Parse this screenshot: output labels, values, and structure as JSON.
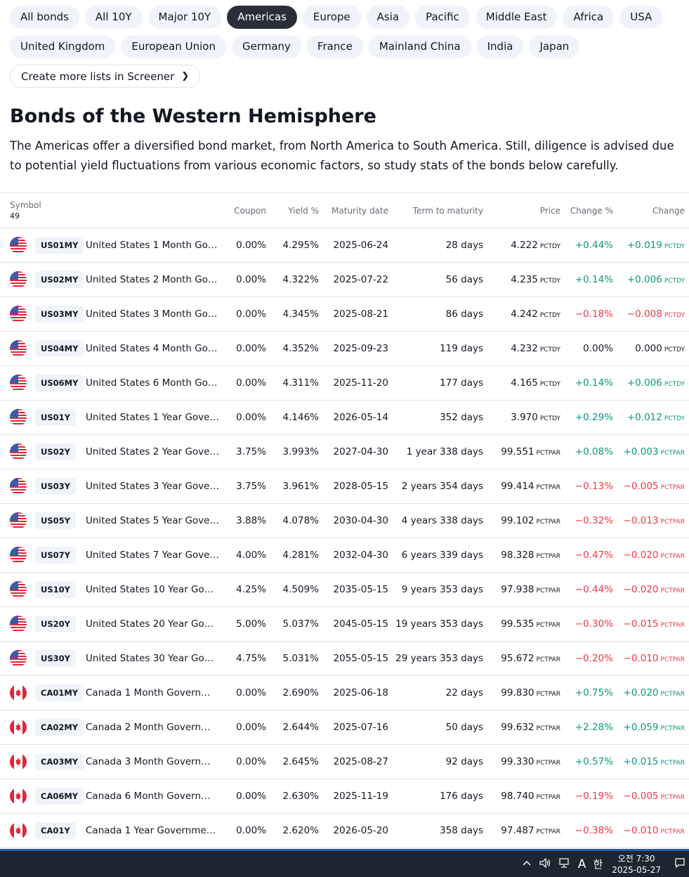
{
  "filters": {
    "row1": [
      "All bonds",
      "All 10Y",
      "Major 10Y",
      "Americas",
      "Europe",
      "Asia",
      "Pacific",
      "Middle East",
      "Africa",
      "USA"
    ],
    "row2": [
      "United Kingdom",
      "European Union",
      "Germany",
      "France",
      "Mainland China",
      "India",
      "Japan"
    ],
    "active": "Americas",
    "screener_link": "Create more lists in Screener"
  },
  "heading": "Bonds of the Western Hemisphere",
  "description": "The Americas offer a diversified bond market, from North America to South America. Still, diligence is advised due to potential yield fluctuations from various economic factors, so study stats of the bonds below carefully.",
  "table": {
    "headers": {
      "symbol": "Symbol",
      "count": "49",
      "coupon": "Coupon",
      "yield": "Yield %",
      "maturity": "Maturity date",
      "term": "Term to maturity",
      "price": "Price",
      "change_pct": "Change %",
      "change": "Change"
    },
    "rows": [
      {
        "country": "us",
        "ticker": "US01MY",
        "name": "United States 1 Month Gove...",
        "coupon": "0.00%",
        "yield": "4.295%",
        "maturity": "2025-06-24",
        "term": "28 days",
        "price": "4.222",
        "price_unit": "PCTDY",
        "chp": "+0.44%",
        "chg": "+0.019",
        "chg_unit": "PCTDY",
        "dir": "pos"
      },
      {
        "country": "us",
        "ticker": "US02MY",
        "name": "United States 2 Month Gove...",
        "coupon": "0.00%",
        "yield": "4.322%",
        "maturity": "2025-07-22",
        "term": "56 days",
        "price": "4.235",
        "price_unit": "PCTDY",
        "chp": "+0.14%",
        "chg": "+0.006",
        "chg_unit": "PCTDY",
        "dir": "pos"
      },
      {
        "country": "us",
        "ticker": "US03MY",
        "name": "United States 3 Month Gove...",
        "coupon": "0.00%",
        "yield": "4.345%",
        "maturity": "2025-08-21",
        "term": "86 days",
        "price": "4.242",
        "price_unit": "PCTDY",
        "chp": "−0.18%",
        "chg": "−0.008",
        "chg_unit": "PCTDY",
        "dir": "neg"
      },
      {
        "country": "us",
        "ticker": "US04MY",
        "name": "United States 4 Month Gove...",
        "coupon": "0.00%",
        "yield": "4.352%",
        "maturity": "2025-09-23",
        "term": "119 days",
        "price": "4.232",
        "price_unit": "PCTDY",
        "chp": "0.00%",
        "chg": "0.000",
        "chg_unit": "PCTDY",
        "dir": "neu"
      },
      {
        "country": "us",
        "ticker": "US06MY",
        "name": "United States 6 Month Gove...",
        "coupon": "0.00%",
        "yield": "4.311%",
        "maturity": "2025-11-20",
        "term": "177 days",
        "price": "4.165",
        "price_unit": "PCTDY",
        "chp": "+0.14%",
        "chg": "+0.006",
        "chg_unit": "PCTDY",
        "dir": "pos"
      },
      {
        "country": "us",
        "ticker": "US01Y",
        "name": "United States 1 Year Govern...",
        "coupon": "0.00%",
        "yield": "4.146%",
        "maturity": "2026-05-14",
        "term": "352 days",
        "price": "3.970",
        "price_unit": "PCTDY",
        "chp": "+0.29%",
        "chg": "+0.012",
        "chg_unit": "PCTDY",
        "dir": "pos"
      },
      {
        "country": "us",
        "ticker": "US02Y",
        "name": "United States 2 Year Govern...",
        "coupon": "3.75%",
        "yield": "3.993%",
        "maturity": "2027-04-30",
        "term": "1 year 338 days",
        "price": "99.551",
        "price_unit": "PCTPAR",
        "chp": "+0.08%",
        "chg": "+0.003",
        "chg_unit": "PCTPAR",
        "dir": "pos"
      },
      {
        "country": "us",
        "ticker": "US03Y",
        "name": "United States 3 Year Govern...",
        "coupon": "3.75%",
        "yield": "3.961%",
        "maturity": "2028-05-15",
        "term": "2 years 354 days",
        "price": "99.414",
        "price_unit": "PCTPAR",
        "chp": "−0.13%",
        "chg": "−0.005",
        "chg_unit": "PCTPAR",
        "dir": "neg"
      },
      {
        "country": "us",
        "ticker": "US05Y",
        "name": "United States 5 Year Govern...",
        "coupon": "3.88%",
        "yield": "4.078%",
        "maturity": "2030-04-30",
        "term": "4 years 338 days",
        "price": "99.102",
        "price_unit": "PCTPAR",
        "chp": "−0.32%",
        "chg": "−0.013",
        "chg_unit": "PCTPAR",
        "dir": "neg"
      },
      {
        "country": "us",
        "ticker": "US07Y",
        "name": "United States 7 Year Govern...",
        "coupon": "4.00%",
        "yield": "4.281%",
        "maturity": "2032-04-30",
        "term": "6 years 339 days",
        "price": "98.328",
        "price_unit": "PCTPAR",
        "chp": "−0.47%",
        "chg": "−0.020",
        "chg_unit": "PCTPAR",
        "dir": "neg"
      },
      {
        "country": "us",
        "ticker": "US10Y",
        "name": "United States 10 Year Govern...",
        "coupon": "4.25%",
        "yield": "4.509%",
        "maturity": "2035-05-15",
        "term": "9 years 353 days",
        "price": "97.938",
        "price_unit": "PCTPAR",
        "chp": "−0.44%",
        "chg": "−0.020",
        "chg_unit": "PCTPAR",
        "dir": "neg"
      },
      {
        "country": "us",
        "ticker": "US20Y",
        "name": "United States 20 Year Govern...",
        "coupon": "5.00%",
        "yield": "5.037%",
        "maturity": "2045-05-15",
        "term": "19 years 353 days",
        "price": "99.535",
        "price_unit": "PCTPAR",
        "chp": "−0.30%",
        "chg": "−0.015",
        "chg_unit": "PCTPAR",
        "dir": "neg"
      },
      {
        "country": "us",
        "ticker": "US30Y",
        "name": "United States 30 Year Govern...",
        "coupon": "4.75%",
        "yield": "5.031%",
        "maturity": "2055-05-15",
        "term": "29 years 353 days",
        "price": "95.672",
        "price_unit": "PCTPAR",
        "chp": "−0.20%",
        "chg": "−0.010",
        "chg_unit": "PCTPAR",
        "dir": "neg"
      },
      {
        "country": "ca",
        "ticker": "CA01MY",
        "name": "Canada 1 Month Governmen...",
        "coupon": "0.00%",
        "yield": "2.690%",
        "maturity": "2025-06-18",
        "term": "22 days",
        "price": "99.830",
        "price_unit": "PCTPAR",
        "chp": "+0.75%",
        "chg": "+0.020",
        "chg_unit": "PCTPAR",
        "dir": "pos"
      },
      {
        "country": "ca",
        "ticker": "CA02MY",
        "name": "Canada 2 Month Governmen...",
        "coupon": "0.00%",
        "yield": "2.644%",
        "maturity": "2025-07-16",
        "term": "50 days",
        "price": "99.632",
        "price_unit": "PCTPAR",
        "chp": "+2.28%",
        "chg": "+0.059",
        "chg_unit": "PCTPAR",
        "dir": "pos"
      },
      {
        "country": "ca",
        "ticker": "CA03MY",
        "name": "Canada 3 Month Governmen...",
        "coupon": "0.00%",
        "yield": "2.645%",
        "maturity": "2025-08-27",
        "term": "92 days",
        "price": "99.330",
        "price_unit": "PCTPAR",
        "chp": "+0.57%",
        "chg": "+0.015",
        "chg_unit": "PCTPAR",
        "dir": "pos"
      },
      {
        "country": "ca",
        "ticker": "CA06MY",
        "name": "Canada 6 Month Governmen...",
        "coupon": "0.00%",
        "yield": "2.630%",
        "maturity": "2025-11-19",
        "term": "176 days",
        "price": "98.740",
        "price_unit": "PCTPAR",
        "chp": "−0.19%",
        "chg": "−0.005",
        "chg_unit": "PCTPAR",
        "dir": "neg"
      },
      {
        "country": "ca",
        "ticker": "CA01Y",
        "name": "Canada 1 Year Government B...",
        "coupon": "0.00%",
        "yield": "2.620%",
        "maturity": "2026-05-20",
        "term": "358 days",
        "price": "97.487",
        "price_unit": "PCTPAR",
        "chp": "−0.38%",
        "chg": "−0.010",
        "chg_unit": "PCTPAR",
        "dir": "neg"
      }
    ]
  },
  "colors": {
    "positive": "#089981",
    "negative": "#f23645",
    "active_pill": "#2a2e39"
  },
  "taskbar": {
    "icons": [
      "chevron-up-icon",
      "speaker-icon",
      "network-icon",
      "ime-a-icon",
      "ime-korean-icon",
      "notification-icon"
    ],
    "ime_mode": "A",
    "ime_lang": "한",
    "time": "오전 7:30",
    "date": "2025-05-27"
  }
}
